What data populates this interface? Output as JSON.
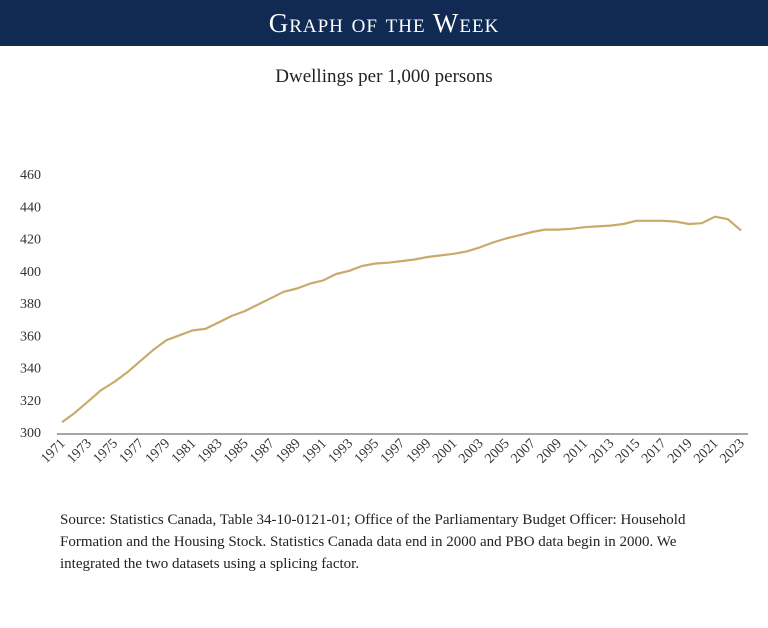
{
  "banner": {
    "title": "Graph of the Week",
    "background": "#102a53"
  },
  "chart_data": {
    "type": "line",
    "title": "Dwellings per 1,000 persons",
    "xlabel": "",
    "ylabel": "",
    "ylim": [
      300,
      460
    ],
    "yticks": [
      300,
      320,
      340,
      360,
      380,
      400,
      420,
      440,
      460
    ],
    "xticks": [
      1971,
      1973,
      1975,
      1977,
      1979,
      1981,
      1983,
      1985,
      1987,
      1989,
      1991,
      1993,
      1995,
      1997,
      1999,
      2001,
      2003,
      2005,
      2007,
      2009,
      2011,
      2013,
      2015,
      2017,
      2019,
      2021,
      2023
    ],
    "grid": false,
    "line_color": "#c8ab6b",
    "x": [
      1971,
      1972,
      1973,
      1974,
      1975,
      1976,
      1977,
      1978,
      1979,
      1980,
      1981,
      1982,
      1983,
      1984,
      1985,
      1986,
      1987,
      1988,
      1989,
      1990,
      1991,
      1992,
      1993,
      1994,
      1995,
      1996,
      1997,
      1998,
      1999,
      2000,
      2001,
      2002,
      2003,
      2004,
      2005,
      2006,
      2007,
      2008,
      2009,
      2010,
      2011,
      2012,
      2013,
      2014,
      2015,
      2016,
      2017,
      2018,
      2019,
      2020,
      2021,
      2022,
      2023
    ],
    "values": [
      306,
      312,
      319,
      326,
      331,
      337,
      344,
      351,
      357,
      360,
      363,
      364,
      368,
      372,
      375,
      379,
      383,
      387,
      389,
      392,
      394,
      398,
      400,
      403,
      404.5,
      405,
      406,
      407,
      408.5,
      409.5,
      410.5,
      412,
      414.5,
      417.5,
      420,
      422,
      424,
      425.5,
      425.5,
      426,
      427,
      427.5,
      428,
      429,
      431,
      431,
      431,
      430.5,
      429,
      429.5,
      433.5,
      432,
      425
    ]
  },
  "source": "Source: Statistics Canada, Table 34-10-0121-01; Office of the Parliamentary Budget Officer: Household Formation and the Housing Stock. Statistics Canada data end in 2000 and PBO data begin in 2000. We integrated the two datasets using a splicing factor."
}
